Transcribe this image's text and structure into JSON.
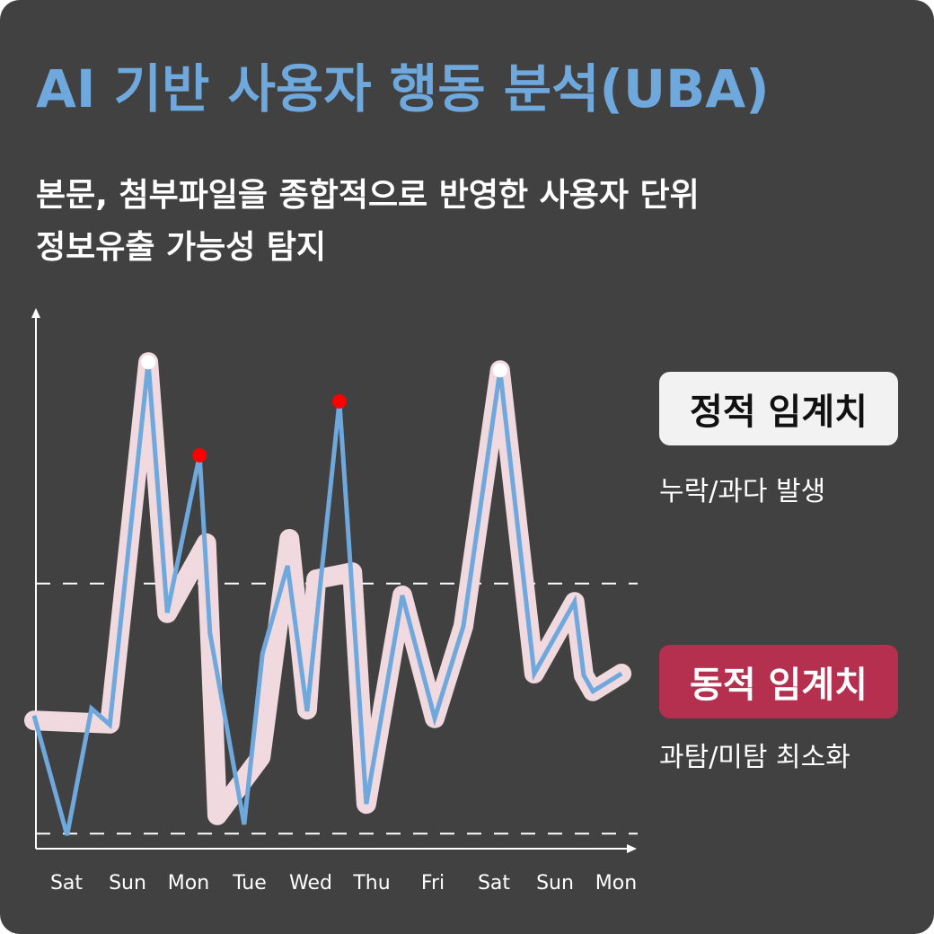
{
  "title": "AI 기반 사용자 행동 분석(UBA)",
  "subtitle_lines": [
    "본문, 첨부파일을 종합적으로 반영한 사용자 단위",
    "정보유출 가능성 탐지"
  ],
  "legend": {
    "static": {
      "label": "정적 임계치",
      "note": "누락/과다 발생",
      "bg": "#f2f2f2",
      "color": "#111111"
    },
    "dynamic": {
      "label": "동적 임계치",
      "note": "과탐/미탐 최소화",
      "bg": "#b5304f",
      "color": "#ffffff"
    }
  },
  "colors": {
    "background": "#414141",
    "title": "#6fa8dc",
    "activity": "#6fa8dc",
    "dynamic_band": "#f0d9df",
    "alert": "#ff0000",
    "peak": "#ffffff"
  },
  "chart_data": {
    "type": "line",
    "categories": [
      "Sat",
      "Sun",
      "Mon",
      "Tue",
      "Wed",
      "Thu",
      "Fri",
      "Sat",
      "Sun",
      "Mon"
    ],
    "ylim": [
      0,
      100
    ],
    "grid": false,
    "static_thresholds": [
      49.2,
      2.8
    ],
    "series": [
      {
        "role": "activity",
        "points": [
          [
            -0.53,
            24.7
          ],
          [
            0.01,
            2.5
          ],
          [
            0.41,
            26
          ],
          [
            0.71,
            23
          ],
          [
            1.34,
            90.3
          ],
          [
            1.65,
            43.8
          ],
          [
            2.18,
            73
          ],
          [
            2.35,
            40
          ],
          [
            2.91,
            4.5
          ],
          [
            3.21,
            36.2
          ],
          [
            3.62,
            52.5
          ],
          [
            3.94,
            25.5
          ],
          [
            4.47,
            83
          ],
          [
            4.91,
            8.3
          ],
          [
            5.5,
            47
          ],
          [
            6.03,
            24.2
          ],
          [
            6.5,
            41.3
          ],
          [
            7.1,
            88.8
          ],
          [
            7.66,
            32.5
          ],
          [
            8.32,
            45.8
          ],
          [
            8.47,
            32.2
          ],
          [
            8.62,
            29.2
          ],
          [
            9.09,
            32.5
          ]
        ]
      },
      {
        "role": "dynamic-threshold",
        "points": [
          [
            -0.53,
            23.8
          ],
          [
            0.71,
            23.2
          ],
          [
            1.34,
            90.3
          ],
          [
            1.65,
            43.7
          ],
          [
            2.29,
            56.7
          ],
          [
            2.47,
            6.2
          ],
          [
            3.18,
            17
          ],
          [
            3.65,
            57.5
          ],
          [
            3.94,
            25.8
          ],
          [
            4.09,
            50
          ],
          [
            4.68,
            51.3
          ],
          [
            4.91,
            8.3
          ],
          [
            5.5,
            47
          ],
          [
            6.03,
            24.2
          ],
          [
            6.5,
            41.3
          ],
          [
            7.1,
            88.8
          ],
          [
            7.66,
            32.5
          ],
          [
            8.32,
            45.8
          ],
          [
            8.47,
            32.2
          ],
          [
            8.62,
            29.2
          ],
          [
            9.09,
            32.5
          ]
        ]
      }
    ],
    "markers": [
      {
        "kind": "peak",
        "x": 1.34,
        "y": 90.3
      },
      {
        "kind": "alert",
        "x": 2.18,
        "y": 73
      },
      {
        "kind": "alert",
        "x": 4.47,
        "y": 83
      },
      {
        "kind": "peak",
        "x": 7.1,
        "y": 88.8
      }
    ]
  }
}
